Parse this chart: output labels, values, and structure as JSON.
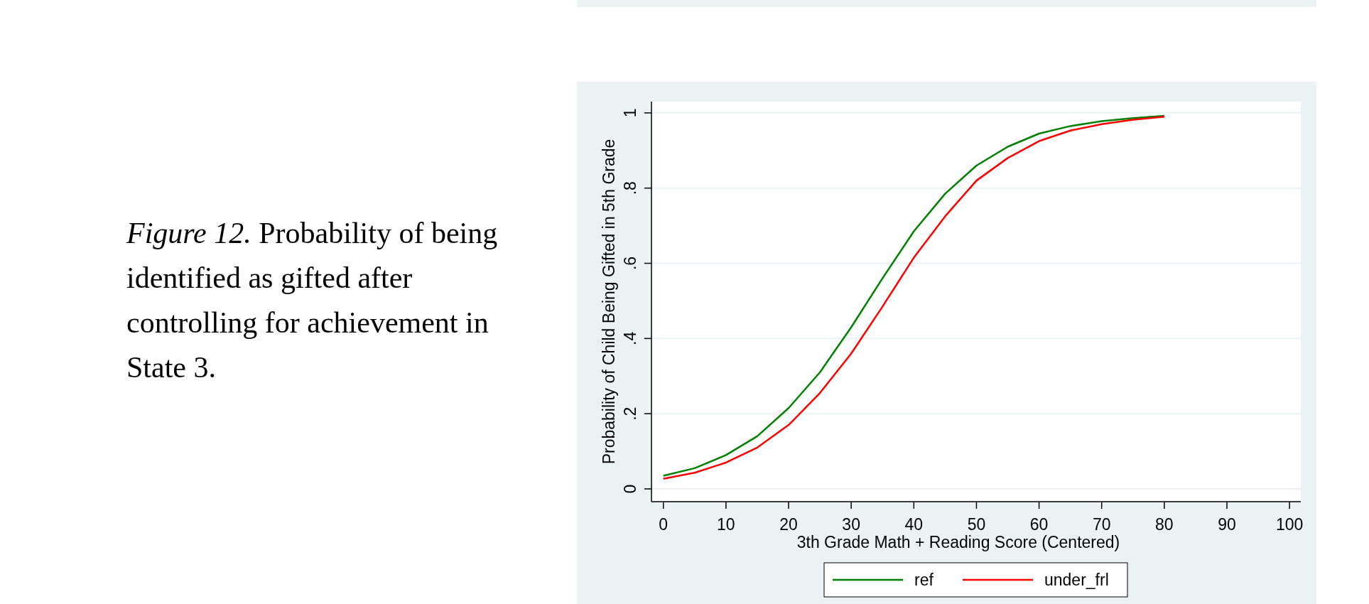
{
  "chart_data": {
    "type": "line",
    "xlabel": "3th Grade Math + Reading Score (Centered)",
    "ylabel": "Probability of Child Being Gifted in 5th Grade",
    "annotations": [
      "Figure 12.",
      "Probability of being identified as gifted after controlling for achievement in State 3."
    ],
    "x": [
      0,
      5,
      10,
      15,
      20,
      25,
      30,
      35,
      40,
      45,
      50,
      55,
      60,
      65,
      70,
      75,
      80
    ],
    "series": [
      {
        "name": "ref",
        "color": "#008000",
        "values": [
          0.035,
          0.055,
          0.09,
          0.14,
          0.215,
          0.31,
          0.43,
          0.56,
          0.685,
          0.785,
          0.86,
          0.91,
          0.945,
          0.965,
          0.978,
          0.986,
          0.992
        ]
      },
      {
        "name": "under_frl",
        "color": "#ff0000",
        "values": [
          0.027,
          0.043,
          0.07,
          0.11,
          0.17,
          0.255,
          0.36,
          0.485,
          0.615,
          0.725,
          0.82,
          0.88,
          0.925,
          0.953,
          0.97,
          0.982,
          0.99
        ]
      }
    ],
    "xlim": [
      -1.9,
      101.8
    ],
    "ylim": [
      -0.034,
      1.03
    ],
    "xticks": [
      0,
      10,
      20,
      30,
      40,
      50,
      60,
      70,
      80,
      90,
      100
    ],
    "yticks": [
      {
        "value": 0,
        "label": "0"
      },
      {
        "value": 0.2,
        "label": ".2"
      },
      {
        "value": 0.4,
        "label": ".4"
      },
      {
        "value": 0.6,
        "label": ".6"
      },
      {
        "value": 0.8,
        "label": ".8"
      },
      {
        "value": 1,
        "label": "1"
      }
    ],
    "grid": "y",
    "legend": "bottom",
    "marker": "none",
    "line_style": "solid"
  }
}
